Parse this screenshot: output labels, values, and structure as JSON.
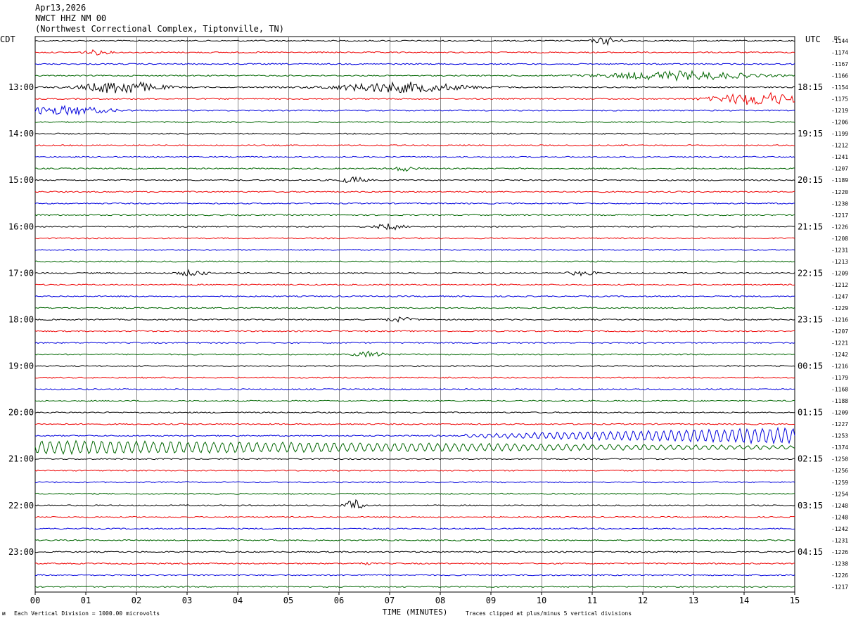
{
  "header": {
    "date": "Apr13,2026",
    "station": "NWCT HHZ NM 00",
    "location": "(Northwest Correctional Complex, Tiptonville, TN)"
  },
  "footer": {
    "division_note": "Each Vertical Division = 1000.00 microvolts",
    "clip_note": "Traces clipped at plus/minus 5 vertical divisions",
    "logo_text": "ᴍ"
  },
  "chart_data": {
    "type": "line",
    "title": "",
    "xlabel": "TIME (MINUTES)",
    "ylabel": "",
    "x_ticks": [
      "00",
      "01",
      "02",
      "03",
      "04",
      "05",
      "06",
      "07",
      "08",
      "09",
      "10",
      "11",
      "12",
      "13",
      "14",
      "15"
    ],
    "xlim": [
      0,
      15
    ],
    "left_axis_label": "CDT",
    "right_axis_label": "UTC",
    "dc_label": "DC",
    "trace_colors": [
      "#000000",
      "#ee0000",
      "#0000dd",
      "#006600"
    ],
    "left_hour_labels": [
      "13:00",
      "14:00",
      "15:00",
      "16:00",
      "17:00",
      "18:00",
      "19:00",
      "20:00",
      "21:00",
      "22:00",
      "23:00"
    ],
    "right_hour_labels": [
      "18:15",
      "19:15",
      "20:15",
      "21:15",
      "22:15",
      "23:15",
      "00:15",
      "01:15",
      "02:15",
      "03:15",
      "04:15"
    ],
    "dc_offsets": [
      -1144,
      -1174,
      -1167,
      -1166,
      -1154,
      -1175,
      -1219,
      -1206,
      -1199,
      -1212,
      -1241,
      -1207,
      -1189,
      -1220,
      -1230,
      -1217,
      -1226,
      -1208,
      -1231,
      -1213,
      -1209,
      -1212,
      -1247,
      -1229,
      -1216,
      -1207,
      -1221,
      -1242,
      -1216,
      -1179,
      -1168,
      -1188,
      -1209,
      -1227,
      -1253,
      -1374,
      -1250,
      -1256,
      -1259,
      -1254,
      -1248,
      -1248,
      -1242,
      -1231,
      -1226,
      -1238,
      -1226,
      -1217
    ],
    "grid": true,
    "events": [
      {
        "trace": 0,
        "t": 11.3,
        "amp": 5
      },
      {
        "trace": 1,
        "t": 1.2,
        "amp": 3
      },
      {
        "trace": 3,
        "t": 12.7,
        "amp": 6,
        "w": 1.4
      },
      {
        "trace": 4,
        "t": 1.7,
        "amp": 9,
        "w": 0.7
      },
      {
        "trace": 4,
        "t": 7.2,
        "amp": 7,
        "w": 1.2
      },
      {
        "trace": 5,
        "t": 14.3,
        "amp": 9,
        "w": 0.8
      },
      {
        "trace": 6,
        "t": 0.6,
        "amp": 6,
        "w": 0.8
      },
      {
        "trace": 11,
        "t": 7.3,
        "amp": 3
      },
      {
        "trace": 12,
        "t": 6.3,
        "amp": 4
      },
      {
        "trace": 16,
        "t": 7.0,
        "amp": 4
      },
      {
        "trace": 20,
        "t": 3.1,
        "amp": 4
      },
      {
        "trace": 20,
        "t": 10.8,
        "amp": 3
      },
      {
        "trace": 24,
        "t": 7.2,
        "amp": 3
      },
      {
        "trace": 27,
        "t": 6.6,
        "amp": 4
      },
      {
        "trace": 40,
        "t": 6.3,
        "amp": 9,
        "w": 0.15
      },
      {
        "trace": 45,
        "t": 6.5,
        "amp": 3,
        "w": 0.1
      }
    ],
    "long_period": [
      {
        "trace": 34,
        "t_start": 8.5,
        "t_end": 15,
        "amp_start": 2,
        "amp_end": 11,
        "period": 0.15
      },
      {
        "trace": 35,
        "t_start": 0,
        "t_end": 15,
        "amp_start": 9,
        "amp_end": 2,
        "period": 0.17
      }
    ]
  }
}
